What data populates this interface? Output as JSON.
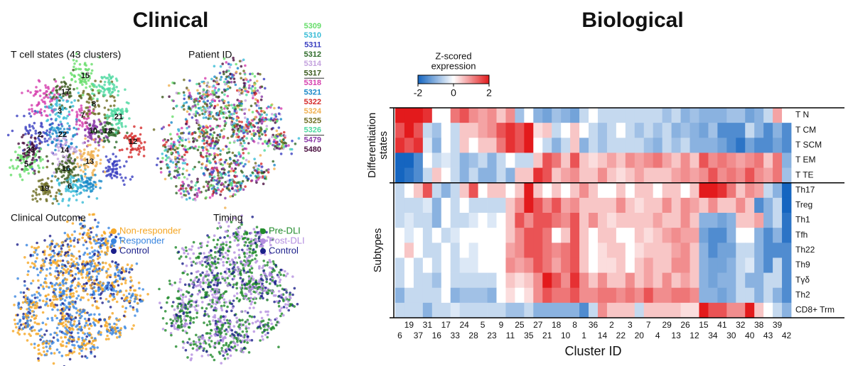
{
  "titles": {
    "clinical": "Clinical",
    "biological": "Biological"
  },
  "tsne_panels": [
    {
      "title": "T cell states (43 clusters)",
      "cluster_labels": [
        "15",
        "17",
        "8",
        "3",
        "7",
        "21",
        "2",
        "22",
        "10",
        "18",
        "12",
        "23",
        "14",
        "13",
        "5",
        "16",
        "19",
        "6"
      ]
    },
    {
      "title": "Patient ID",
      "legend_groups": [
        [
          {
            "name": "5309",
            "color": "#66dd6a"
          },
          {
            "name": "5310",
            "color": "#38bcd6"
          },
          {
            "name": "5311",
            "color": "#3a3fc0"
          },
          {
            "name": "5312",
            "color": "#2e6b2a"
          },
          {
            "name": "5314",
            "color": "#c4a2de"
          },
          {
            "name": "5317",
            "color": "#3b5a1e"
          }
        ],
        [
          {
            "name": "5318",
            "color": "#d63fae"
          },
          {
            "name": "5321",
            "color": "#1a88c8"
          },
          {
            "name": "5322",
            "color": "#d42a2a"
          },
          {
            "name": "5324",
            "color": "#f0b050"
          },
          {
            "name": "5325",
            "color": "#6b6b20"
          },
          {
            "name": "5326",
            "color": "#4ed8a0"
          }
        ],
        [
          {
            "name": "5479",
            "color": "#8a3aa8"
          },
          {
            "name": "5480",
            "color": "#4a1040"
          }
        ]
      ]
    },
    {
      "title": "Clinical Outcome",
      "legend": [
        {
          "name": "Non-responder",
          "color": "#f5a623"
        },
        {
          "name": "Responder",
          "color": "#3a86e0"
        },
        {
          "name": "Control",
          "color": "#1b1f8a"
        }
      ]
    },
    {
      "title": "Timing",
      "legend": [
        {
          "name": "Pre-DLI",
          "color": "#1f8a2a"
        },
        {
          "name": "Post-DLI",
          "color": "#b48ee0"
        },
        {
          "name": "Control",
          "color": "#1b1f8a"
        }
      ]
    }
  ],
  "heatmap": {
    "colorbar_title": [
      "Z-scored",
      "expression"
    ],
    "colorbar_lim": [
      -2,
      2
    ],
    "colorbar_ticks": [
      -2,
      0,
      2
    ],
    "colors": {
      "low": "#1565c0",
      "mid": "#ffffff",
      "high": "#e31a1c"
    },
    "x_label": "Cluster ID",
    "columns": [
      "6",
      "19",
      "37",
      "31",
      "16",
      "17",
      "33",
      "24",
      "28",
      "5",
      "23",
      "9",
      "11",
      "25",
      "35",
      "27",
      "21",
      "18",
      "10",
      "8",
      "1",
      "36",
      "14",
      "2",
      "22",
      "3",
      "20",
      "7",
      "4",
      "29",
      "13",
      "26",
      "12",
      "15",
      "34",
      "41",
      "30",
      "32",
      "40",
      "38",
      "43",
      "39",
      "42"
    ],
    "row_groups": [
      {
        "label": [
          "Differentiation",
          "states"
        ],
        "rows": [
          0,
          1,
          2,
          3,
          4
        ]
      },
      {
        "label": [
          "Subtypes"
        ],
        "rows": [
          5,
          6,
          7,
          8,
          9,
          10,
          11,
          12,
          13
        ]
      }
    ],
    "rows": [
      "T N",
      "T CM",
      "T SCM",
      "T EM",
      "T TE",
      "Th17",
      "Treg",
      "Th1",
      "Tfh",
      "Th22",
      "Th9",
      "Tγδ",
      "Th2",
      "CD8+ Trm"
    ],
    "values": [
      [
        2,
        2,
        2,
        1.8,
        0,
        0,
        1.2,
        1.5,
        1,
        0.8,
        1,
        0.5,
        1,
        -0.8,
        0,
        -1,
        -1.2,
        -0.8,
        -1,
        -1.2,
        -0.5,
        0,
        -0.5,
        -0.5,
        -0.5,
        -0.5,
        -0.5,
        -0.5,
        -0.5,
        -0.8,
        -0.5,
        -1,
        -0.8,
        -1,
        -1,
        -1,
        -0.8,
        -0.8,
        -1.2,
        -1,
        -0.5,
        0.8,
        0
      ],
      [
        1.5,
        2,
        1.5,
        -0.5,
        -0.8,
        0,
        -0.5,
        0.5,
        0.5,
        0.8,
        1,
        1.5,
        1.8,
        1.5,
        2,
        0.3,
        0.5,
        -0.5,
        0,
        0.5,
        0,
        -0.5,
        -0.8,
        -0.5,
        0,
        -0.5,
        -0.8,
        -0.5,
        -0.8,
        -0.5,
        -1,
        -0.8,
        -1,
        -1.2,
        -0.8,
        -1.5,
        -1.5,
        -1.5,
        -0.5,
        -1,
        -1.5,
        -1,
        -1.5
      ],
      [
        1.8,
        1.5,
        1.8,
        -0.3,
        -1,
        0,
        -0.5,
        0.5,
        0,
        0.5,
        0.5,
        1.2,
        1.8,
        1.5,
        2,
        0,
        -0.5,
        -1,
        -0.5,
        0.5,
        -1,
        -0.5,
        -0.8,
        -0.5,
        -0.5,
        -0.5,
        -0.5,
        -0.8,
        -1,
        -0.5,
        -0.8,
        -0.5,
        -1,
        -1,
        -1,
        -1.2,
        -1.5,
        -1.8,
        -1.2,
        -1.5,
        -1.5,
        -1.2,
        -1.5
      ],
      [
        -2,
        -2,
        -1.5,
        0,
        -0.5,
        -0.3,
        -0.5,
        -1,
        -0.8,
        -0.5,
        -1,
        -0.5,
        0,
        -0.5,
        -0.5,
        0.5,
        1.5,
        1.2,
        0.5,
        1.5,
        0.5,
        0.3,
        0.5,
        0.8,
        0.5,
        1,
        0.8,
        1,
        1.2,
        0.8,
        0.5,
        1,
        0.5,
        1.5,
        1,
        1.2,
        1,
        0.8,
        1,
        1.2,
        0.5,
        1.2,
        -1
      ],
      [
        -2,
        -1.8,
        -1.5,
        -0.5,
        0.5,
        0,
        -0.5,
        -1,
        -0.5,
        -1,
        -1,
        -0.5,
        -1,
        0.5,
        0.5,
        1.8,
        1.5,
        0.5,
        0.8,
        1,
        0.5,
        0.5,
        1,
        0.5,
        0.3,
        0.5,
        0.8,
        0.5,
        0.5,
        0.5,
        0.8,
        1,
        0.8,
        1,
        1.5,
        1,
        1.2,
        1,
        1.5,
        1,
        0.8,
        1.2,
        -0.8
      ],
      [
        -0.5,
        0,
        0.5,
        1.5,
        -0.5,
        -1,
        -0.5,
        0.5,
        1.5,
        0,
        0.5,
        0.5,
        0,
        0.5,
        2,
        0.5,
        0,
        0.5,
        0,
        0.5,
        1,
        0.5,
        0,
        0,
        0.5,
        0,
        0.5,
        0.5,
        0,
        0.5,
        0.5,
        0,
        0.5,
        2,
        2.2,
        1.8,
        1.2,
        0.5,
        1,
        0.8,
        -0.5,
        -1,
        -2
      ],
      [
        -0.5,
        -0.5,
        -0.5,
        -0.3,
        -1,
        0,
        -0.5,
        0,
        -0.5,
        -0.5,
        -0.5,
        -0.5,
        0.5,
        1,
        2,
        1.5,
        1,
        1.5,
        0.8,
        1,
        0.5,
        0.5,
        0.5,
        0.5,
        1,
        0.5,
        0.3,
        0.5,
        0.5,
        1,
        0.5,
        1,
        0.8,
        0.5,
        1,
        0.5,
        0.5,
        1,
        0.5,
        -1.5,
        -1,
        -0.5,
        -2
      ],
      [
        -0.5,
        -0.3,
        -0.5,
        -0.5,
        -1,
        0,
        -0.5,
        -0.5,
        -0.3,
        0,
        -0.3,
        0,
        0.5,
        1.5,
        1,
        1.5,
        1.5,
        1.2,
        1,
        1.5,
        0.5,
        1,
        0.5,
        0.3,
        0.5,
        0.5,
        0.5,
        0.5,
        0.8,
        0.5,
        0.5,
        1,
        0.5,
        -1,
        -1,
        -1.2,
        -1,
        0.5,
        0.5,
        0.8,
        -1,
        -0.5,
        -1.8
      ],
      [
        0,
        -0.3,
        0,
        -0.5,
        0,
        -0.5,
        -0.3,
        0,
        0,
        0,
        0,
        0,
        0.5,
        1,
        1.5,
        1.5,
        1.2,
        0,
        0.5,
        1.5,
        0.5,
        0,
        0.5,
        0.5,
        0,
        0,
        0.5,
        0.3,
        0.5,
        0.8,
        1,
        0.8,
        0.8,
        -1.2,
        -1.5,
        -1.5,
        -1,
        0,
        0,
        -1,
        -1.5,
        -1,
        -1.8
      ],
      [
        0,
        0.5,
        0,
        -0.5,
        -0.5,
        0,
        -0.5,
        0,
        -0.3,
        0,
        0,
        0,
        0.8,
        1,
        1.5,
        1.5,
        1.2,
        1,
        1.2,
        1.5,
        0.5,
        0,
        0.3,
        0.5,
        0.5,
        0,
        0.3,
        0.5,
        0.5,
        0.5,
        0.8,
        1,
        0.5,
        -1,
        -1.5,
        -1.2,
        -1.2,
        -0.5,
        -0.5,
        -1,
        -1.5,
        -1.5,
        -1.5
      ],
      [
        -0.5,
        0,
        -0.5,
        0,
        -0.5,
        0,
        -0.5,
        -0.3,
        -0.3,
        0,
        0,
        0,
        1,
        0.8,
        1,
        1.5,
        1.2,
        0.8,
        1.2,
        1.5,
        0.5,
        0,
        0.3,
        0.3,
        0.5,
        0,
        0.5,
        0.8,
        0.5,
        0.5,
        1,
        1,
        0.5,
        -1,
        -1.2,
        -1.2,
        -1,
        -0.5,
        -0.3,
        -1,
        -1.5,
        -0.5,
        -1.5
      ],
      [
        -0.5,
        0,
        -0.5,
        -0.5,
        -0.8,
        0,
        -0.5,
        -0.5,
        -0.5,
        -0.5,
        -0.5,
        0,
        0.5,
        0.3,
        0.5,
        1,
        2,
        1.5,
        1,
        1.8,
        1,
        0.5,
        1,
        0.5,
        0.5,
        1,
        0.5,
        0.8,
        0.5,
        1,
        0.5,
        0.8,
        0.5,
        -1,
        -1.2,
        -1,
        -1,
        -0.5,
        -1,
        -1,
        -0.5,
        -0.5,
        -1.5
      ],
      [
        -1,
        -0.5,
        -0.5,
        -0.5,
        -0.5,
        0,
        -1,
        -0.8,
        -0.8,
        -0.8,
        -1,
        0,
        0.3,
        0,
        0.3,
        1,
        1.5,
        1.2,
        1.2,
        1.5,
        1,
        1,
        1.2,
        1.2,
        1,
        1.2,
        1,
        1.5,
        1,
        1,
        1.2,
        1.2,
        1,
        -1,
        -1,
        -1.2,
        -1,
        -0.5,
        -0.5,
        -1,
        -0.5,
        -1,
        -1.5
      ],
      [
        -0.5,
        -0.5,
        -0.5,
        -1,
        -0.5,
        -0.5,
        -0.3,
        -0.5,
        -0.5,
        -0.5,
        -0.5,
        -0.5,
        -0.8,
        -0.8,
        -0.5,
        -1,
        -1,
        -1,
        -1,
        -1,
        -1.5,
        -0.5,
        1,
        0.5,
        0.5,
        0.5,
        -0.5,
        0.5,
        0.5,
        0.5,
        0.5,
        0.3,
        0.3,
        2,
        1.5,
        1.5,
        1,
        1,
        2,
        0.5,
        0,
        -0.5,
        -1
      ]
    ]
  }
}
